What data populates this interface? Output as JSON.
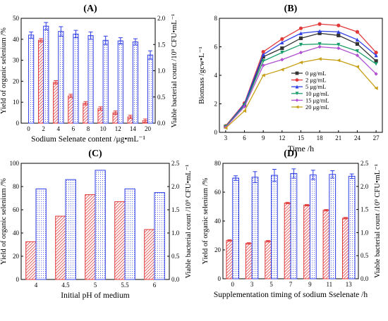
{
  "colors": {
    "yield_bar": "#e23a3a",
    "count_bar": "#2f3fe6",
    "axis": "#000000"
  },
  "chart_data": [
    {
      "panel": "(A)",
      "type": "bar",
      "xlabel": "Sodium Selenate content /μg•mL⁻¹",
      "ylabel": "Yield of organic selenium /%",
      "ylabel_right": "Viable bacterial count /10⁹ CFU•mL⁻¹",
      "categories": [
        "0",
        "2",
        "4",
        "6",
        "8",
        "10",
        "12",
        "14",
        "20"
      ],
      "ylim": [
        0,
        50
      ],
      "yticks": [
        "0",
        "10",
        "20",
        "30",
        "40",
        "50"
      ],
      "ylim_right": [
        0,
        2.0
      ],
      "yticks_right": [
        "0.0",
        "0.5",
        "1.0",
        "1.5",
        "2.0"
      ],
      "series": [
        {
          "values": [
            0,
            39.5,
            19.5,
            13,
            9.5,
            7,
            5,
            3,
            1.2
          ],
          "errors": [
            0,
            0.8,
            0.8,
            0.8,
            0.8,
            0.8,
            0.8,
            0.8,
            0.8
          ],
          "axis": "left",
          "pattern": "hatch"
        },
        {
          "values": [
            1.68,
            1.85,
            1.75,
            1.7,
            1.67,
            1.58,
            1.57,
            1.55,
            1.3
          ],
          "errors": [
            0.06,
            0.07,
            0.09,
            0.07,
            0.07,
            0.08,
            0.06,
            0.06,
            0.08
          ],
          "axis": "right",
          "pattern": "dots"
        }
      ]
    },
    {
      "panel": "(B)",
      "type": "line",
      "xlabel": "Time /h",
      "ylabel": "Biomass /gcw•L⁻¹",
      "x": [
        3,
        6,
        9,
        12,
        15,
        18,
        21,
        24,
        27
      ],
      "xlim": [
        2,
        28
      ],
      "ylim": [
        0,
        8
      ],
      "yticks": [
        "0",
        "2",
        "4",
        "6",
        "8"
      ],
      "legend_position": "bottom-right",
      "series": [
        {
          "name": "0 μg/mL",
          "color": "#333333",
          "marker": "square",
          "values": [
            0.4,
            1.9,
            5.3,
            5.9,
            6.6,
            6.95,
            6.8,
            6.2,
            5.0
          ]
        },
        {
          "name": "2 μg/mL",
          "color": "#e23a3a",
          "marker": "circle",
          "values": [
            0.45,
            2.05,
            5.65,
            6.55,
            7.3,
            7.6,
            7.5,
            7.05,
            5.6
          ]
        },
        {
          "name": "5 μg/mL",
          "color": "#2f3fe6",
          "marker": "triangle-up",
          "values": [
            0.4,
            2.0,
            5.45,
            6.3,
            6.95,
            7.1,
            7.05,
            6.5,
            5.4
          ]
        },
        {
          "name": "10 μg/mL",
          "color": "#1a9e6a",
          "marker": "triangle-down",
          "values": [
            0.4,
            1.9,
            5.0,
            5.6,
            6.15,
            6.2,
            6.15,
            5.7,
            4.8
          ]
        },
        {
          "name": "15 μg/mL",
          "color": "#b050d0",
          "marker": "diamond",
          "values": [
            0.35,
            1.8,
            4.7,
            5.1,
            5.6,
            6.0,
            5.9,
            5.4,
            4.1
          ]
        },
        {
          "name": "20 μg/mL",
          "color": "#c8a018",
          "marker": "triangle-left",
          "values": [
            0.3,
            1.5,
            4.0,
            4.4,
            4.9,
            5.15,
            5.05,
            4.6,
            3.1
          ]
        }
      ]
    },
    {
      "panel": "(C)",
      "type": "bar",
      "xlabel": "Initial pH of medium",
      "ylabel": "Yield of organic selenium /%",
      "ylabel_right": "Viable bacterial count /10⁹ CFU•mL⁻¹",
      "categories": [
        "4",
        "4.5",
        "5",
        "5.5",
        "6"
      ],
      "ylim": [
        0,
        100
      ],
      "yticks": [
        "0",
        "20",
        "40",
        "60",
        "80",
        "100"
      ],
      "ylim_right": [
        0,
        2.5
      ],
      "yticks_right": [
        "0.0",
        "0.5",
        "1.0",
        "1.5",
        "2.0",
        "2.5"
      ],
      "series": [
        {
          "values": [
            32.5,
            54.5,
            73,
            67,
            43
          ],
          "axis": "left",
          "pattern": "hatch"
        },
        {
          "values": [
            1.95,
            2.15,
            2.35,
            1.95,
            1.87
          ],
          "axis": "right",
          "pattern": "dots"
        }
      ]
    },
    {
      "panel": "(D)",
      "type": "bar",
      "xlabel": "Supplementation timing of sodium Sselenate /h",
      "ylabel": "Yield of organic selenium /%",
      "ylabel_right": "Viable bacterial count /10⁹ CFU•mL⁻¹",
      "categories": [
        "0",
        "3",
        "5",
        "7",
        "9",
        "11",
        "13"
      ],
      "ylim": [
        0,
        80
      ],
      "yticks": [
        "0",
        "20",
        "40",
        "60",
        "80"
      ],
      "ylim_right": [
        0,
        2.5
      ],
      "yticks_right": [
        "0.0",
        "0.5",
        "1.0",
        "1.5",
        "2.0",
        "2.5"
      ],
      "series": [
        {
          "values": [
            26.5,
            24.5,
            26,
            52.5,
            51,
            47.5,
            42
          ],
          "errors": [
            0.5,
            0.5,
            0.5,
            0.5,
            0.5,
            0.5,
            0.5
          ],
          "axis": "left",
          "pattern": "hatch"
        },
        {
          "values": [
            2.18,
            2.2,
            2.24,
            2.28,
            2.25,
            2.26,
            2.22
          ],
          "errors": [
            0.05,
            0.12,
            0.13,
            0.1,
            0.1,
            0.08,
            0.05
          ],
          "axis": "right",
          "pattern": "dots"
        }
      ]
    }
  ]
}
